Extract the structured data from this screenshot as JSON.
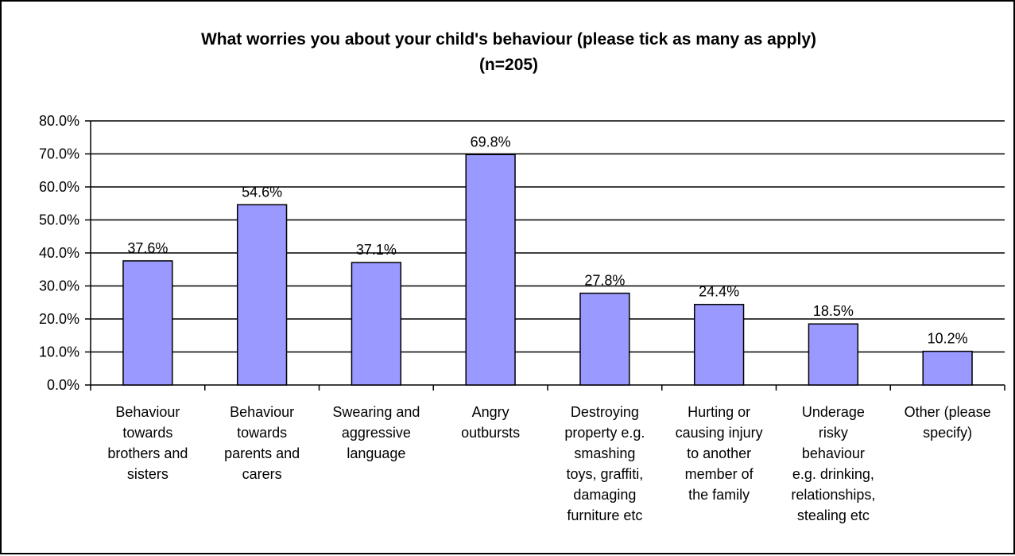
{
  "chart_data": {
    "type": "bar",
    "title": "What worries you about your child's behaviour (please tick as many as apply)",
    "subtitle": "(n=205)",
    "xlabel": "",
    "ylabel": "",
    "ylim": [
      0,
      80
    ],
    "ytick_step": 10,
    "y_tick_labels": [
      "0.0%",
      "10.0%",
      "20.0%",
      "30.0%",
      "40.0%",
      "50.0%",
      "60.0%",
      "70.0%",
      "80.0%"
    ],
    "grid": true,
    "legend": "none",
    "bar_color": "#9999ff",
    "categories": [
      [
        "Behaviour",
        "towards",
        "brothers and",
        "sisters"
      ],
      [
        "Behaviour",
        "towards",
        "parents and",
        "carers"
      ],
      [
        "Swearing and",
        "aggressive",
        "language"
      ],
      [
        "Angry",
        "outbursts"
      ],
      [
        "Destroying",
        "property e.g.",
        "smashing",
        "toys, graffiti,",
        "damaging",
        "furniture etc"
      ],
      [
        "Hurting or",
        "causing injury",
        "to another",
        "member of",
        "the family"
      ],
      [
        "Underage",
        "risky",
        "behaviour",
        "e.g. drinking,",
        "relationships,",
        "stealing etc"
      ],
      [
        "Other (please",
        "specify)"
      ]
    ],
    "values": [
      37.6,
      54.6,
      37.1,
      69.8,
      27.8,
      24.4,
      18.5,
      10.2
    ],
    "data_labels": [
      "37.6%",
      "54.6%",
      "37.1%",
      "69.8%",
      "27.8%",
      "24.4%",
      "18.5%",
      "10.2%"
    ]
  }
}
